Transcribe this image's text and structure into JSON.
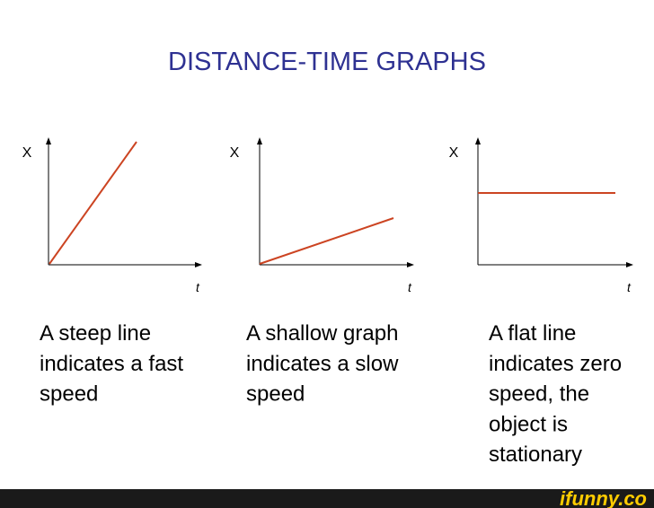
{
  "title": "DISTANCE-TIME GRAPHS",
  "graphs": [
    {
      "y_label": "X",
      "x_label": "t",
      "caption": [
        "A steep line",
        "indicates a fast",
        "speed"
      ]
    },
    {
      "y_label": "X",
      "x_label": "t",
      "caption": [
        "A shallow graph",
        "indicates a slow",
        "speed"
      ]
    },
    {
      "y_label": "X",
      "x_label": "t",
      "caption": [
        "A flat line",
        "indicates zero",
        "speed, the",
        "object is",
        "stationary"
      ]
    }
  ],
  "watermark": "ifunny.co"
}
